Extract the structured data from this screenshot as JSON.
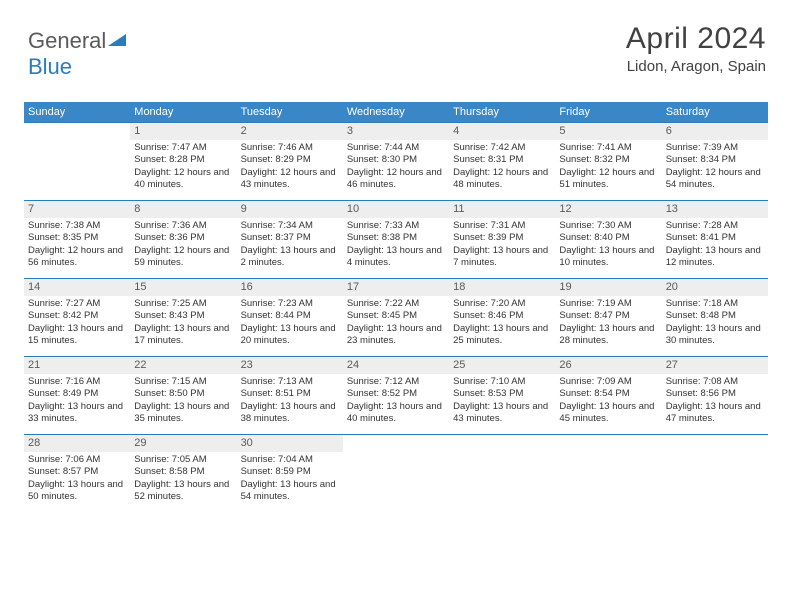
{
  "logo": {
    "text1": "General",
    "text2": "Blue"
  },
  "header": {
    "month": "April 2024",
    "location": "Lidon, Aragon, Spain"
  },
  "colors": {
    "headerBg": "#3a87c7",
    "headerText": "#ffffff",
    "borderTop": "#2b7bbf",
    "dayNumBg": "#eeeeee",
    "textColor": "#333333",
    "logoGray": "#5a5a5a",
    "logoBlue": "#2b7bbf"
  },
  "calendar": {
    "dayNames": [
      "Sunday",
      "Monday",
      "Tuesday",
      "Wednesday",
      "Thursday",
      "Friday",
      "Saturday"
    ],
    "weeks": [
      [
        {
          "n": "",
          "t": ""
        },
        {
          "n": "1",
          "t": "Sunrise: 7:47 AM\nSunset: 8:28 PM\nDaylight: 12 hours and 40 minutes."
        },
        {
          "n": "2",
          "t": "Sunrise: 7:46 AM\nSunset: 8:29 PM\nDaylight: 12 hours and 43 minutes."
        },
        {
          "n": "3",
          "t": "Sunrise: 7:44 AM\nSunset: 8:30 PM\nDaylight: 12 hours and 46 minutes."
        },
        {
          "n": "4",
          "t": "Sunrise: 7:42 AM\nSunset: 8:31 PM\nDaylight: 12 hours and 48 minutes."
        },
        {
          "n": "5",
          "t": "Sunrise: 7:41 AM\nSunset: 8:32 PM\nDaylight: 12 hours and 51 minutes."
        },
        {
          "n": "6",
          "t": "Sunrise: 7:39 AM\nSunset: 8:34 PM\nDaylight: 12 hours and 54 minutes."
        }
      ],
      [
        {
          "n": "7",
          "t": "Sunrise: 7:38 AM\nSunset: 8:35 PM\nDaylight: 12 hours and 56 minutes."
        },
        {
          "n": "8",
          "t": "Sunrise: 7:36 AM\nSunset: 8:36 PM\nDaylight: 12 hours and 59 minutes."
        },
        {
          "n": "9",
          "t": "Sunrise: 7:34 AM\nSunset: 8:37 PM\nDaylight: 13 hours and 2 minutes."
        },
        {
          "n": "10",
          "t": "Sunrise: 7:33 AM\nSunset: 8:38 PM\nDaylight: 13 hours and 4 minutes."
        },
        {
          "n": "11",
          "t": "Sunrise: 7:31 AM\nSunset: 8:39 PM\nDaylight: 13 hours and 7 minutes."
        },
        {
          "n": "12",
          "t": "Sunrise: 7:30 AM\nSunset: 8:40 PM\nDaylight: 13 hours and 10 minutes."
        },
        {
          "n": "13",
          "t": "Sunrise: 7:28 AM\nSunset: 8:41 PM\nDaylight: 13 hours and 12 minutes."
        }
      ],
      [
        {
          "n": "14",
          "t": "Sunrise: 7:27 AM\nSunset: 8:42 PM\nDaylight: 13 hours and 15 minutes."
        },
        {
          "n": "15",
          "t": "Sunrise: 7:25 AM\nSunset: 8:43 PM\nDaylight: 13 hours and 17 minutes."
        },
        {
          "n": "16",
          "t": "Sunrise: 7:23 AM\nSunset: 8:44 PM\nDaylight: 13 hours and 20 minutes."
        },
        {
          "n": "17",
          "t": "Sunrise: 7:22 AM\nSunset: 8:45 PM\nDaylight: 13 hours and 23 minutes."
        },
        {
          "n": "18",
          "t": "Sunrise: 7:20 AM\nSunset: 8:46 PM\nDaylight: 13 hours and 25 minutes."
        },
        {
          "n": "19",
          "t": "Sunrise: 7:19 AM\nSunset: 8:47 PM\nDaylight: 13 hours and 28 minutes."
        },
        {
          "n": "20",
          "t": "Sunrise: 7:18 AM\nSunset: 8:48 PM\nDaylight: 13 hours and 30 minutes."
        }
      ],
      [
        {
          "n": "21",
          "t": "Sunrise: 7:16 AM\nSunset: 8:49 PM\nDaylight: 13 hours and 33 minutes."
        },
        {
          "n": "22",
          "t": "Sunrise: 7:15 AM\nSunset: 8:50 PM\nDaylight: 13 hours and 35 minutes."
        },
        {
          "n": "23",
          "t": "Sunrise: 7:13 AM\nSunset: 8:51 PM\nDaylight: 13 hours and 38 minutes."
        },
        {
          "n": "24",
          "t": "Sunrise: 7:12 AM\nSunset: 8:52 PM\nDaylight: 13 hours and 40 minutes."
        },
        {
          "n": "25",
          "t": "Sunrise: 7:10 AM\nSunset: 8:53 PM\nDaylight: 13 hours and 43 minutes."
        },
        {
          "n": "26",
          "t": "Sunrise: 7:09 AM\nSunset: 8:54 PM\nDaylight: 13 hours and 45 minutes."
        },
        {
          "n": "27",
          "t": "Sunrise: 7:08 AM\nSunset: 8:56 PM\nDaylight: 13 hours and 47 minutes."
        }
      ],
      [
        {
          "n": "28",
          "t": "Sunrise: 7:06 AM\nSunset: 8:57 PM\nDaylight: 13 hours and 50 minutes."
        },
        {
          "n": "29",
          "t": "Sunrise: 7:05 AM\nSunset: 8:58 PM\nDaylight: 13 hours and 52 minutes."
        },
        {
          "n": "30",
          "t": "Sunrise: 7:04 AM\nSunset: 8:59 PM\nDaylight: 13 hours and 54 minutes."
        },
        {
          "n": "",
          "t": ""
        },
        {
          "n": "",
          "t": ""
        },
        {
          "n": "",
          "t": ""
        },
        {
          "n": "",
          "t": ""
        }
      ]
    ]
  }
}
